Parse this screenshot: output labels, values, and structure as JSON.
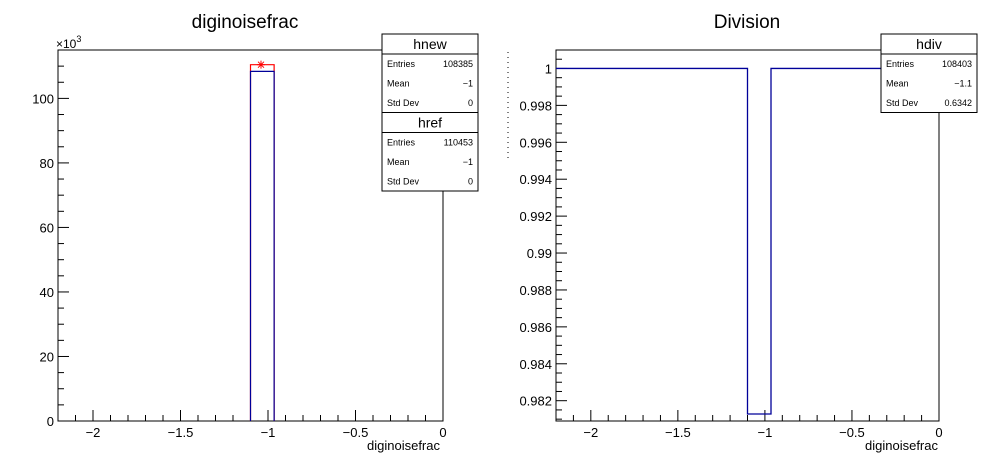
{
  "chart_data": [
    {
      "type": "histogram",
      "title": "diginoisefrac",
      "xlabel": "diginoisefrac",
      "ylabel": "",
      "y_multiplier_label": "×10",
      "y_multiplier_exp": "3",
      "xlim": [
        -2.2,
        0
      ],
      "ylim": [
        0,
        115000
      ],
      "x_ticks": [
        -2,
        -1.5,
        -1,
        -0.5,
        0
      ],
      "x_tick_labels": [
        "−2",
        "−1.5",
        "−1",
        "−0.5",
        "0"
      ],
      "y_ticks": [
        0,
        20000,
        40000,
        60000,
        80000,
        100000
      ],
      "y_tick_labels": [
        "0",
        "20",
        "40",
        "60",
        "80",
        "100"
      ],
      "series": [
        {
          "name": "href",
          "color": "#ff0000",
          "bin_low": -1.1,
          "bin_high": -0.965,
          "value": 110453,
          "marker": "star",
          "marker_x": -1.04
        },
        {
          "name": "hnew",
          "color": "#000099",
          "bin_low": -1.1,
          "bin_high": -0.965,
          "value": 108385
        }
      ],
      "stats_boxes": [
        {
          "name": "hnew",
          "rows": [
            {
              "label": "Entries",
              "value": "108385"
            },
            {
              "label": "Mean",
              "value": "−1"
            },
            {
              "label": "Std Dev",
              "value": "0"
            }
          ]
        },
        {
          "name": "href",
          "rows": [
            {
              "label": "Entries",
              "value": "110453"
            },
            {
              "label": "Mean",
              "value": "−1"
            },
            {
              "label": "Std Dev",
              "value": "0"
            }
          ]
        }
      ]
    },
    {
      "type": "histogram",
      "title": "Division",
      "xlabel": "diginoisefrac",
      "ylabel": "",
      "xlim": [
        -2.2,
        0
      ],
      "ylim": [
        0.9809,
        1.001
      ],
      "x_ticks": [
        -2,
        -1.5,
        -1,
        -0.5,
        0
      ],
      "x_tick_labels": [
        "−2",
        "−1.5",
        "−1",
        "−0.5",
        "0"
      ],
      "y_ticks": [
        0.982,
        0.984,
        0.986,
        0.988,
        0.99,
        0.992,
        0.994,
        0.996,
        0.998,
        1
      ],
      "y_tick_labels": [
        "0.982",
        "0.984",
        "0.986",
        "0.988",
        "0.99",
        "0.992",
        "0.994",
        "0.996",
        "0.998",
        "1"
      ],
      "series": [
        {
          "name": "hdiv",
          "color": "#000099",
          "bins": [
            {
              "low": -2.2,
              "high": -1.1,
              "value": 1
            },
            {
              "low": -1.1,
              "high": -0.965,
              "value": 0.98128
            },
            {
              "low": -0.965,
              "high": 0,
              "value": 1
            }
          ]
        }
      ],
      "stats_boxes": [
        {
          "name": "hdiv",
          "rows": [
            {
              "label": "Entries",
              "value": "108403"
            },
            {
              "label": "Mean",
              "value": "−1.1"
            },
            {
              "label": "Std Dev",
              "value": "0.6342"
            }
          ]
        }
      ]
    }
  ]
}
